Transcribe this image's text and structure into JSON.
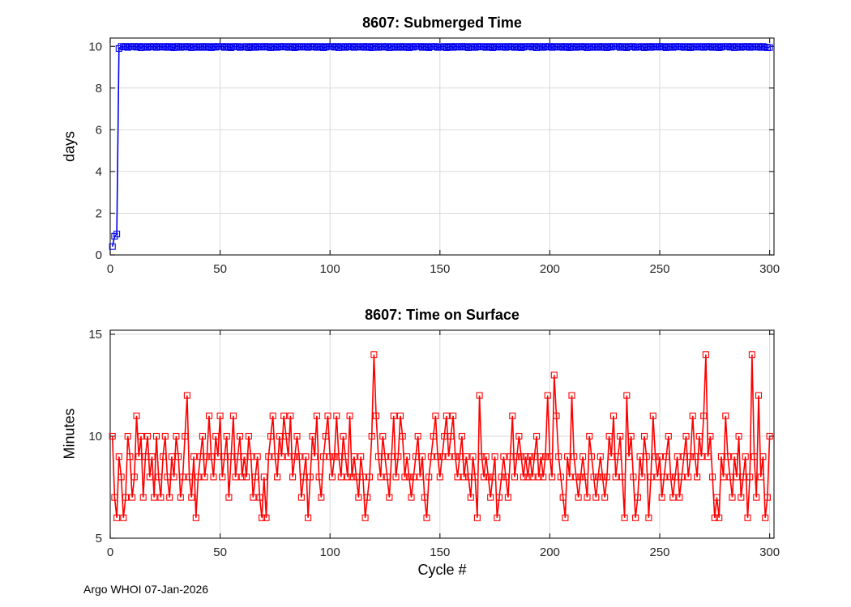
{
  "footer": {
    "text": "Argo WHOI 07-Jan-2026"
  },
  "chart_data": [
    {
      "type": "line",
      "title": "8607: Submerged Time",
      "xlabel": "",
      "ylabel": "days",
      "xlim": [
        0,
        300
      ],
      "ylim": [
        0,
        10
      ],
      "xticks": [
        0,
        50,
        100,
        150,
        200,
        250,
        300
      ],
      "yticks": [
        0,
        2,
        4,
        6,
        8,
        10
      ],
      "grid": true,
      "legend": null,
      "color": "#0000ee",
      "marker": "square",
      "x_start": 1,
      "values": [
        0.4,
        0.9,
        1,
        9.9,
        10,
        9.97,
        10,
        9.95,
        10,
        9.98,
        10,
        9.96,
        10,
        9.94,
        10,
        9.99,
        9.95,
        10,
        9.97,
        10,
        9.95,
        10,
        9.98,
        9.96,
        10,
        9.95,
        10,
        9.97,
        9.94,
        10,
        10,
        9.95,
        9.98,
        10,
        9.96,
        10,
        9.94,
        9.99,
        10,
        9.95,
        9.97,
        10,
        9.95,
        10,
        9.98,
        9.94,
        10,
        9.96,
        10,
        9.99,
        10,
        9.95,
        10,
        9.97,
        9.94,
        10,
        9.98,
        10,
        9.95,
        9.96,
        9.99,
        10,
        9.94,
        9.97,
        10,
        9.95,
        10,
        9.98,
        9.96,
        10,
        10,
        9.96,
        9.94,
        10,
        9.99,
        9.95,
        10,
        9.97,
        10,
        9.98,
        9.95,
        10,
        9.97,
        9.94,
        10,
        9.98,
        9.96,
        10,
        9.99,
        9.95,
        10,
        9.97,
        10,
        9.95,
        9.98,
        10,
        9.94,
        9.96,
        10,
        9.99,
        10,
        9.96,
        10,
        9.94,
        10,
        9.99,
        9.95,
        10,
        9.97,
        10,
        9.95,
        10,
        9.98,
        9.96,
        10,
        9.95,
        10,
        9.97,
        9.94,
        10,
        10,
        9.95,
        9.98,
        10,
        9.96,
        10,
        9.94,
        9.99,
        10,
        9.95,
        9.97,
        10,
        9.95,
        10,
        9.98,
        9.94,
        10,
        9.96,
        10,
        9.99,
        10,
        9.95,
        10,
        9.97,
        9.94,
        10,
        9.98,
        10,
        9.95,
        9.96,
        9.99,
        10,
        9.94,
        9.97,
        10,
        9.95,
        10,
        9.98,
        9.96,
        10,
        10,
        9.96,
        9.94,
        10,
        9.99,
        9.95,
        10,
        9.97,
        10,
        9.98,
        9.95,
        10,
        9.97,
        9.94,
        10,
        9.98,
        9.96,
        10,
        9.99,
        9.95,
        10,
        9.97,
        10,
        9.95,
        9.98,
        10,
        9.94,
        9.96,
        10,
        9.99,
        10,
        9.96,
        10,
        9.94,
        10,
        9.99,
        9.95,
        10,
        9.97,
        10,
        9.95,
        10,
        9.98,
        9.96,
        10,
        9.95,
        10,
        9.97,
        9.94,
        10,
        10,
        9.95,
        9.98,
        10,
        9.96,
        10,
        9.94,
        9.99,
        10,
        9.95,
        9.97,
        10,
        9.95,
        10,
        9.98,
        9.94,
        10,
        9.96,
        10,
        9.99,
        10,
        9.95,
        10,
        9.97,
        9.94,
        10,
        9.98,
        10,
        9.95,
        9.96,
        9.99,
        10,
        9.94,
        9.97,
        10,
        9.95,
        10,
        9.98,
        9.96,
        10,
        10,
        9.96,
        9.94,
        10,
        9.99,
        9.95,
        10,
        9.97,
        10,
        9.98,
        9.95,
        10,
        9.97,
        9.94,
        10,
        9.98,
        9.96,
        10,
        9.99,
        9.95,
        10,
        9.97,
        10,
        9.95,
        9.98,
        10,
        9.94,
        9.96,
        10,
        9.99,
        10,
        9.96,
        10,
        9.94,
        10,
        9.99,
        9.95,
        10,
        9.97,
        10,
        9.95,
        10,
        9.98,
        9.96,
        10,
        9.95,
        10,
        9.97,
        9.94,
        9.95
      ]
    },
    {
      "type": "line",
      "title": "8607: Time on Surface",
      "xlabel": "Cycle #",
      "ylabel": "Minutes",
      "xlim": [
        0,
        300
      ],
      "ylim": [
        5,
        15
      ],
      "xticks": [
        0,
        50,
        100,
        150,
        200,
        250,
        300
      ],
      "yticks": [
        5,
        10,
        15
      ],
      "grid": true,
      "legend": null,
      "color": "#ff0000",
      "marker": "square",
      "x_start": 1,
      "values": [
        10,
        7,
        6,
        9,
        8,
        6,
        7,
        10,
        9,
        7,
        8,
        11,
        9,
        10,
        7,
        9,
        10,
        8,
        9,
        7,
        10,
        8,
        7,
        9,
        10,
        8,
        7,
        9,
        8,
        10,
        9,
        7,
        8,
        10,
        12,
        8,
        7,
        9,
        6,
        8,
        9,
        10,
        8,
        9,
        11,
        9,
        8,
        10,
        9,
        11,
        8,
        9,
        10,
        7,
        9,
        11,
        8,
        9,
        10,
        8,
        9,
        8,
        10,
        9,
        7,
        8,
        9,
        7,
        6,
        8,
        6,
        9,
        10,
        11,
        9,
        8,
        10,
        9,
        11,
        10,
        9,
        11,
        8,
        9,
        10,
        9,
        7,
        8,
        9,
        6,
        8,
        10,
        9,
        11,
        8,
        7,
        9,
        10,
        11,
        9,
        8,
        9,
        11,
        9,
        8,
        10,
        9,
        8,
        11,
        8,
        9,
        8,
        7,
        9,
        8,
        6,
        7,
        8,
        10,
        14,
        11,
        9,
        8,
        10,
        9,
        8,
        7,
        9,
        11,
        8,
        9,
        11,
        10,
        8,
        9,
        8,
        7,
        8,
        9,
        10,
        8,
        9,
        7,
        6,
        8,
        9,
        10,
        11,
        9,
        8,
        9,
        10,
        11,
        9,
        10,
        11,
        9,
        8,
        9,
        10,
        8,
        9,
        8,
        7,
        9,
        8,
        6,
        12,
        9,
        8,
        9,
        8,
        7,
        8,
        9,
        6,
        7,
        8,
        9,
        8,
        7,
        9,
        11,
        8,
        9,
        10,
        9,
        8,
        9,
        8,
        9,
        8,
        9,
        10,
        8,
        9,
        8,
        9,
        12,
        9,
        8,
        13,
        11,
        9,
        8,
        7,
        6,
        9,
        8,
        12,
        9,
        8,
        7,
        8,
        9,
        8,
        7,
        10,
        9,
        8,
        7,
        8,
        9,
        8,
        7,
        8,
        10,
        9,
        11,
        8,
        9,
        10,
        8,
        6,
        12,
        9,
        10,
        8,
        6,
        7,
        9,
        8,
        10,
        9,
        6,
        8,
        11,
        9,
        8,
        9,
        7,
        8,
        9,
        10,
        8,
        7,
        8,
        9,
        7,
        8,
        9,
        10,
        8,
        9,
        11,
        9,
        8,
        10,
        9,
        11,
        14,
        9,
        10,
        8,
        6,
        7,
        6,
        9,
        8,
        11,
        9,
        8,
        7,
        9,
        8,
        10,
        7,
        8,
        9,
        6,
        8,
        14,
        9,
        7,
        12,
        8,
        9,
        6,
        7,
        10
      ]
    }
  ]
}
